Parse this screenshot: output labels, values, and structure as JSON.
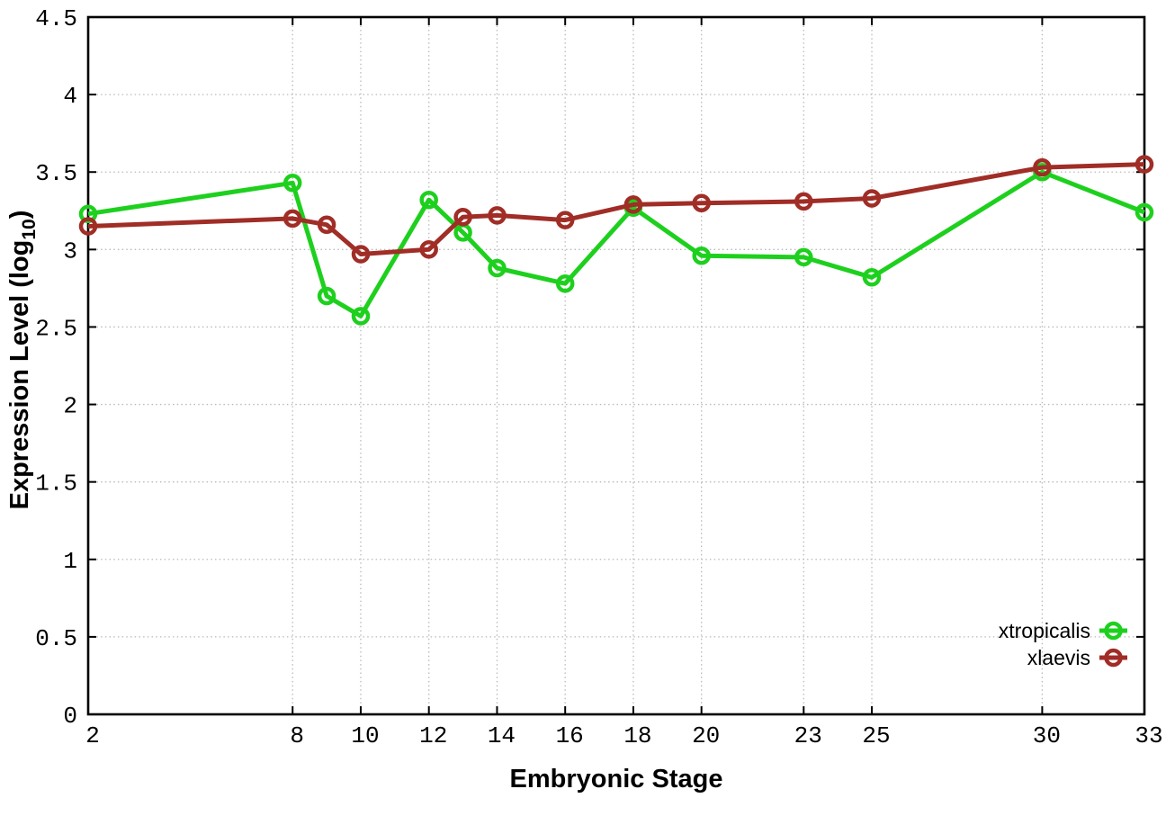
{
  "chart_data": {
    "type": "line",
    "title": "",
    "xlabel": "Embryonic Stage",
    "ylabel": "Expression Level (log10)",
    "ylabel_parts": {
      "main": "Expression Level (log",
      "sub": "10",
      "suffix": ")"
    },
    "x": [
      2,
      8,
      9,
      10,
      12,
      13,
      14,
      16,
      18,
      20,
      23,
      25,
      30,
      33
    ],
    "series": [
      {
        "name": "xtropicalis",
        "color": "#1ed01e",
        "values": [
          3.23,
          3.43,
          2.7,
          2.57,
          3.32,
          3.11,
          2.88,
          2.78,
          3.27,
          2.96,
          2.95,
          2.82,
          3.5,
          3.24
        ]
      },
      {
        "name": "xlaevis",
        "color": "#a02d26",
        "values": [
          3.15,
          3.2,
          3.16,
          2.97,
          3.0,
          3.21,
          3.22,
          3.19,
          3.29,
          3.3,
          3.31,
          3.33,
          3.53,
          3.55
        ]
      }
    ],
    "xlim": [
      2,
      33
    ],
    "ylim": [
      0,
      4.5
    ],
    "x_ticks": [
      2,
      8,
      10,
      12,
      14,
      16,
      18,
      20,
      23,
      25,
      30,
      33
    ],
    "y_ticks": [
      0,
      0.5,
      1,
      1.5,
      2,
      2.5,
      3,
      3.5,
      4,
      4.5
    ],
    "grid": true,
    "legend_position": "bottom-right",
    "legend": [
      "xtropicalis",
      "xlaevis"
    ],
    "colors": {
      "background": "#ffffff",
      "grid": "#b9b9b9",
      "axis": "#000000"
    }
  }
}
